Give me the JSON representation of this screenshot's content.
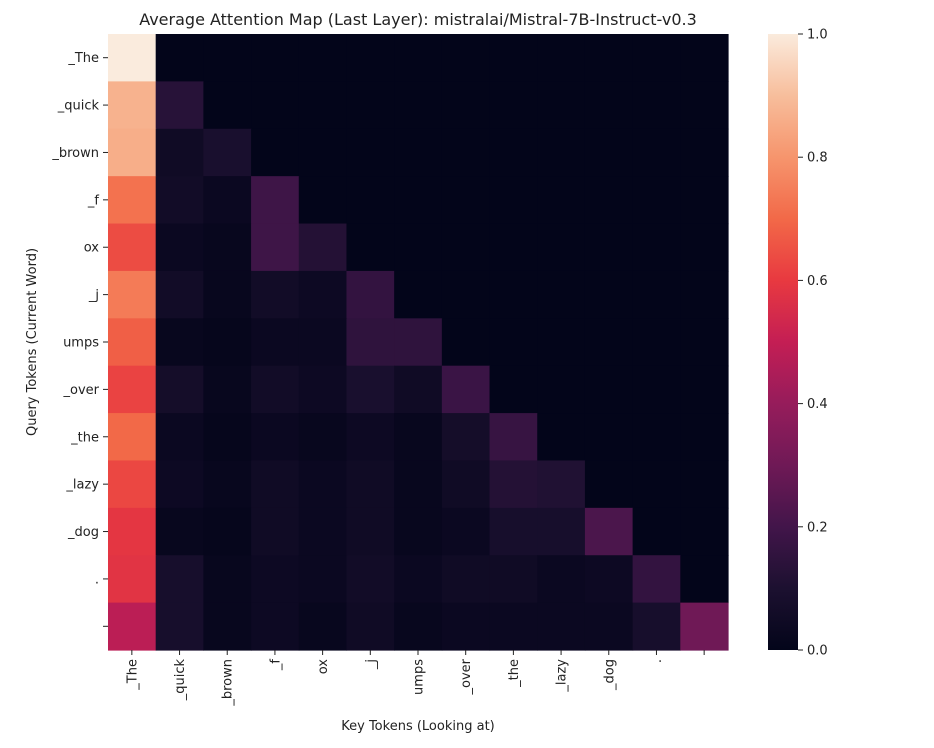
{
  "chart_data": {
    "type": "heatmap",
    "title": "Average Attention Map (Last Layer): mistralai/Mistral-7B-Instruct-v0.3",
    "xlabel": "Key Tokens (Looking at)",
    "ylabel": "Query Tokens (Current Word)",
    "x_tokens": [
      "_The",
      "_quick",
      "_brown",
      "_f",
      "ox",
      "_j",
      "umps",
      "_over",
      "_the",
      "_lazy",
      "_dog",
      ".",
      ""
    ],
    "y_tokens": [
      "_The",
      "_quick",
      "_brown",
      "_f",
      "ox",
      "_j",
      "umps",
      "_over",
      "_the",
      "_lazy",
      "_dog",
      ".",
      ""
    ],
    "values": [
      [
        1.0,
        0,
        0,
        0,
        0,
        0,
        0,
        0,
        0,
        0,
        0,
        0,
        0
      ],
      [
        0.87,
        0.13,
        0,
        0,
        0,
        0,
        0,
        0,
        0,
        0,
        0,
        0,
        0
      ],
      [
        0.86,
        0.05,
        0.09,
        0,
        0,
        0,
        0,
        0,
        0,
        0,
        0,
        0,
        0
      ],
      [
        0.72,
        0.06,
        0.03,
        0.19,
        0,
        0,
        0,
        0,
        0,
        0,
        0,
        0,
        0
      ],
      [
        0.64,
        0.03,
        0.02,
        0.19,
        0.12,
        0,
        0,
        0,
        0,
        0,
        0,
        0,
        0
      ],
      [
        0.74,
        0.06,
        0.02,
        0.06,
        0.04,
        0.16,
        0,
        0,
        0,
        0,
        0,
        0,
        0
      ],
      [
        0.68,
        0.02,
        0.01,
        0.03,
        0.03,
        0.15,
        0.15,
        0,
        0,
        0,
        0,
        0,
        0
      ],
      [
        0.62,
        0.07,
        0.02,
        0.06,
        0.04,
        0.09,
        0.05,
        0.18,
        0,
        0,
        0,
        0,
        0
      ],
      [
        0.7,
        0.03,
        0.01,
        0.03,
        0.02,
        0.04,
        0.02,
        0.07,
        0.17,
        0,
        0,
        0,
        0
      ],
      [
        0.63,
        0.04,
        0.02,
        0.05,
        0.03,
        0.05,
        0.02,
        0.05,
        0.12,
        0.11,
        0,
        0,
        0
      ],
      [
        0.59,
        0.02,
        0.01,
        0.05,
        0.03,
        0.05,
        0.02,
        0.03,
        0.08,
        0.08,
        0.22,
        0,
        0
      ],
      [
        0.58,
        0.08,
        0.02,
        0.04,
        0.03,
        0.06,
        0.03,
        0.05,
        0.05,
        0.03,
        0.04,
        0.16,
        0
      ],
      [
        0.48,
        0.08,
        0.02,
        0.04,
        0.02,
        0.05,
        0.02,
        0.03,
        0.03,
        0.03,
        0.03,
        0.08,
        0.3
      ]
    ],
    "colorbar": {
      "range": [
        0,
        1
      ],
      "ticks": [
        "0.0",
        "0.2",
        "0.4",
        "0.6",
        "0.8",
        "1.0"
      ],
      "colormap": "rocket"
    },
    "grid": false
  }
}
